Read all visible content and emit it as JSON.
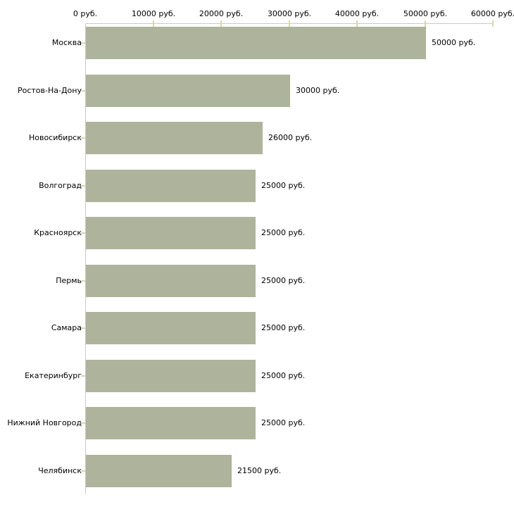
{
  "chart_data": {
    "type": "bar",
    "orientation": "horizontal",
    "title": "",
    "xlabel": "",
    "ylabel": "",
    "xlim": [
      0,
      60000
    ],
    "grid": false,
    "legend": false,
    "categories": [
      "Москва",
      "Ростов-На-Дону",
      "Новосибирск",
      "Волгоград",
      "Красноярск",
      "Пермь",
      "Самара",
      "Екатеринбург",
      "Нижний Новгород",
      "Челябинск"
    ],
    "values": [
      50000,
      30000,
      26000,
      25000,
      25000,
      25000,
      25000,
      25000,
      25000,
      21500
    ],
    "value_labels": [
      "50000 руб.",
      "30000 руб.",
      "26000 руб.",
      "25000 руб.",
      "25000 руб.",
      "25000 руб.",
      "25000 руб.",
      "25000 руб.",
      "25000 руб.",
      "21500 руб."
    ],
    "x_ticks": [
      {
        "value": 0,
        "label": "0 руб."
      },
      {
        "value": 10000,
        "label": "10000 руб."
      },
      {
        "value": 20000,
        "label": "20000 руб."
      },
      {
        "value": 30000,
        "label": "30000 руб."
      },
      {
        "value": 40000,
        "label": "40000 руб."
      },
      {
        "value": 50000,
        "label": "50000 руб."
      },
      {
        "value": 60000,
        "label": "60000 руб."
      }
    ],
    "colors": {
      "bar": "#aeb39b",
      "axis_line": "#c9c9c9",
      "tick_mark": "#d8d6b0",
      "text": "#000000",
      "background": "#ffffff"
    }
  }
}
